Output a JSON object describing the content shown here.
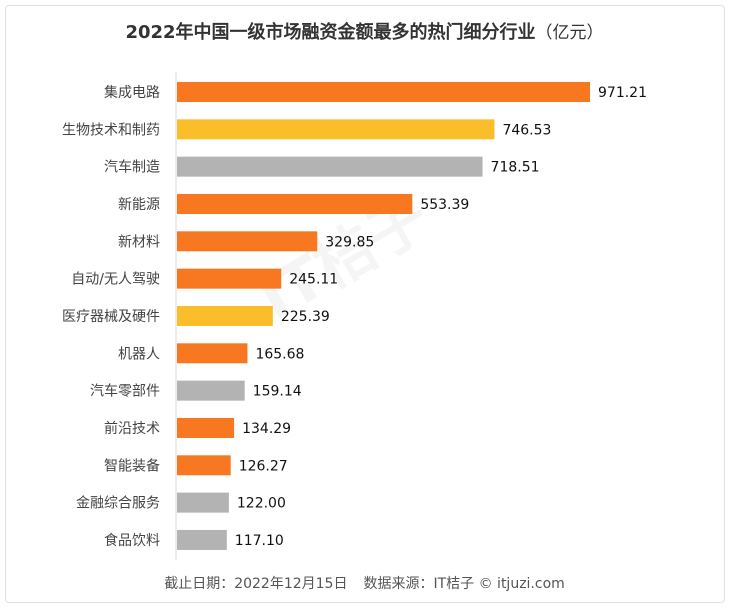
{
  "chart_data": {
    "type": "bar",
    "orientation": "horizontal",
    "title": "2022年中国一级市场融资金额最多的热门细分行业",
    "unit": "（亿元）",
    "categories": [
      "集成电路",
      "生物技术和制药",
      "汽车制造",
      "新能源",
      "新材料",
      "自动/无人驾驶",
      "医疗器械及硬件",
      "机器人",
      "汽车零部件",
      "前沿技术",
      "智能装备",
      "金融综合服务",
      "食品饮料"
    ],
    "values": [
      971.21,
      746.53,
      718.51,
      553.39,
      329.85,
      245.11,
      225.39,
      165.68,
      159.14,
      134.29,
      126.27,
      122.0,
      117.1
    ],
    "labels": [
      "971.21",
      "746.53",
      "718.51",
      "553.39",
      "329.85",
      "245.11",
      "225.39",
      "165.68",
      "159.14",
      "134.29",
      "126.27",
      "122.00",
      "117.10"
    ],
    "color_groups": [
      "orange",
      "yellow",
      "gray",
      "orange",
      "orange",
      "orange",
      "yellow",
      "orange",
      "gray",
      "orange",
      "orange",
      "gray",
      "gray"
    ],
    "xlim": [
      0,
      971.21
    ],
    "grid": false
  },
  "colors": {
    "orange": "#F77820",
    "yellow": "#FBBE2B",
    "gray": "#B3B3B3",
    "axis": "#d9d9d9"
  },
  "footer": {
    "date": "截止日期：2022年12月15日",
    "source": "数据来源：IT桔子 © itjuzi.com"
  },
  "watermark": "IT桔子 ITJUZI.COM"
}
